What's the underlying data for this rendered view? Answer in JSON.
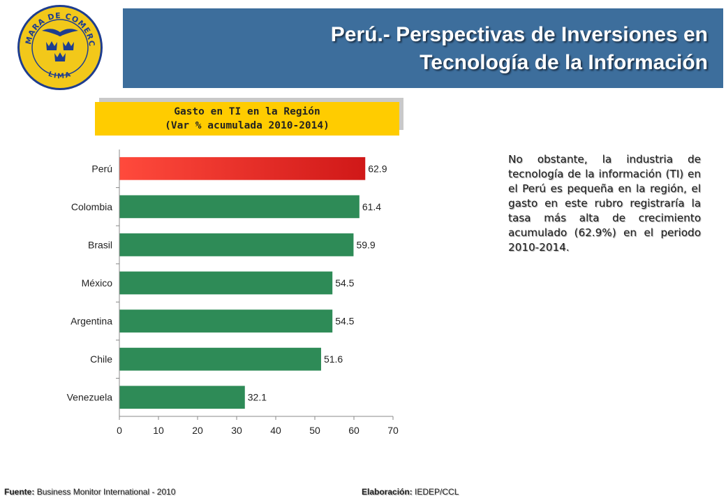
{
  "logo": {
    "text_top": "CAMARA DE COMERCIO",
    "text_bottom": "LIMA",
    "colors": {
      "ring": "#1e3d8f",
      "fill": "#f2c81a",
      "crowns": "#1e3d8f"
    }
  },
  "header": {
    "title_line1": "Perú.- Perspectivas de Inversiones en",
    "title_line2": "Tecnología de la Información",
    "background": "#3d6e9c"
  },
  "subtitle": {
    "line1": "Gasto en TI en la Región",
    "line2": "(Var % acumulada 2010-2014)",
    "background": "#ffcc00"
  },
  "chart_data": {
    "type": "bar",
    "orientation": "horizontal",
    "categories": [
      "Perú",
      "Colombia",
      "Brasil",
      "México",
      "Argentina",
      "Chile",
      "Venezuela"
    ],
    "values": [
      62.9,
      61.4,
      59.9,
      54.5,
      54.5,
      51.6,
      32.1
    ],
    "value_labels": [
      "62.9",
      "61.4",
      "59.9",
      "54.5",
      "54.5",
      "51.6",
      "32.1"
    ],
    "xlim": [
      0,
      70
    ],
    "xticks": [
      "0",
      "10",
      "20",
      "30",
      "40",
      "50",
      "60",
      "70"
    ],
    "grid": false,
    "colors": {
      "highlight": "#e8262a",
      "default": "#2e8b57"
    }
  },
  "note": {
    "text": "No obstante, la industria de tecnología de la información (TI) en el Perú es pequeña en la región, el gasto en este rubro registraría la tasa más alta de crecimiento acumulado (62.9%) en el periodo 2010-2014."
  },
  "footer": {
    "source_label": "Fuente:",
    "source_value": "Business Monitor International - 2010",
    "credit_label": "Elaboración:",
    "credit_value": "IEDEP/CCL"
  }
}
